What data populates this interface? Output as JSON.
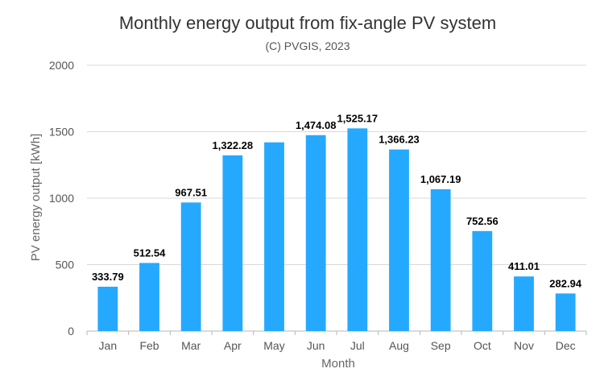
{
  "chart_data": {
    "type": "bar",
    "title": "Monthly energy output from fix-angle PV system",
    "subtitle": "(C) PVGIS, 2023",
    "xlabel": "Month",
    "ylabel": "PV energy output [kWh]",
    "categories": [
      "Jan",
      "Feb",
      "Mar",
      "Apr",
      "May",
      "Jun",
      "Jul",
      "Aug",
      "Sep",
      "Oct",
      "Nov",
      "Dec"
    ],
    "values": [
      333.79,
      512.54,
      967.51,
      1322.28,
      1420,
      1474.08,
      1525.17,
      1366.23,
      1067.19,
      752.56,
      411.01,
      282.94
    ],
    "value_labels": [
      "333.79",
      "512.54",
      "967.51",
      "1,322.28",
      "",
      "1,474.08",
      "1,525.17",
      "1,366.23",
      "1,067.19",
      "752.56",
      "411.01",
      "282.94"
    ],
    "ylim": [
      0,
      2000
    ],
    "yticks": [
      0,
      500,
      1000,
      1500,
      2000
    ],
    "grid": true,
    "legend": "none",
    "colors": {
      "bar": "#25A9FF",
      "grid": "#d9d9d9",
      "axis": "#b7b7b7"
    }
  }
}
